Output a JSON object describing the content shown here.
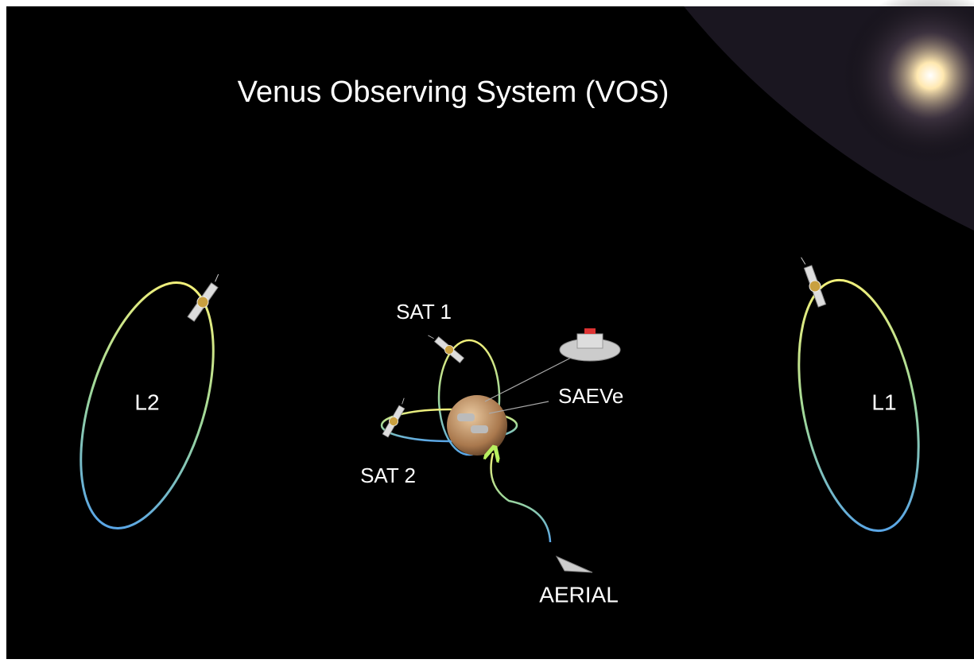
{
  "title": "Venus Observing System (VOS)",
  "nodes": [
    {
      "label": "L2"
    },
    {
      "label": "L1"
    },
    {
      "label": "SAT 1"
    },
    {
      "label": "SAT 2"
    },
    {
      "label": "SAEVe"
    },
    {
      "label": "AERIAL"
    }
  ]
}
